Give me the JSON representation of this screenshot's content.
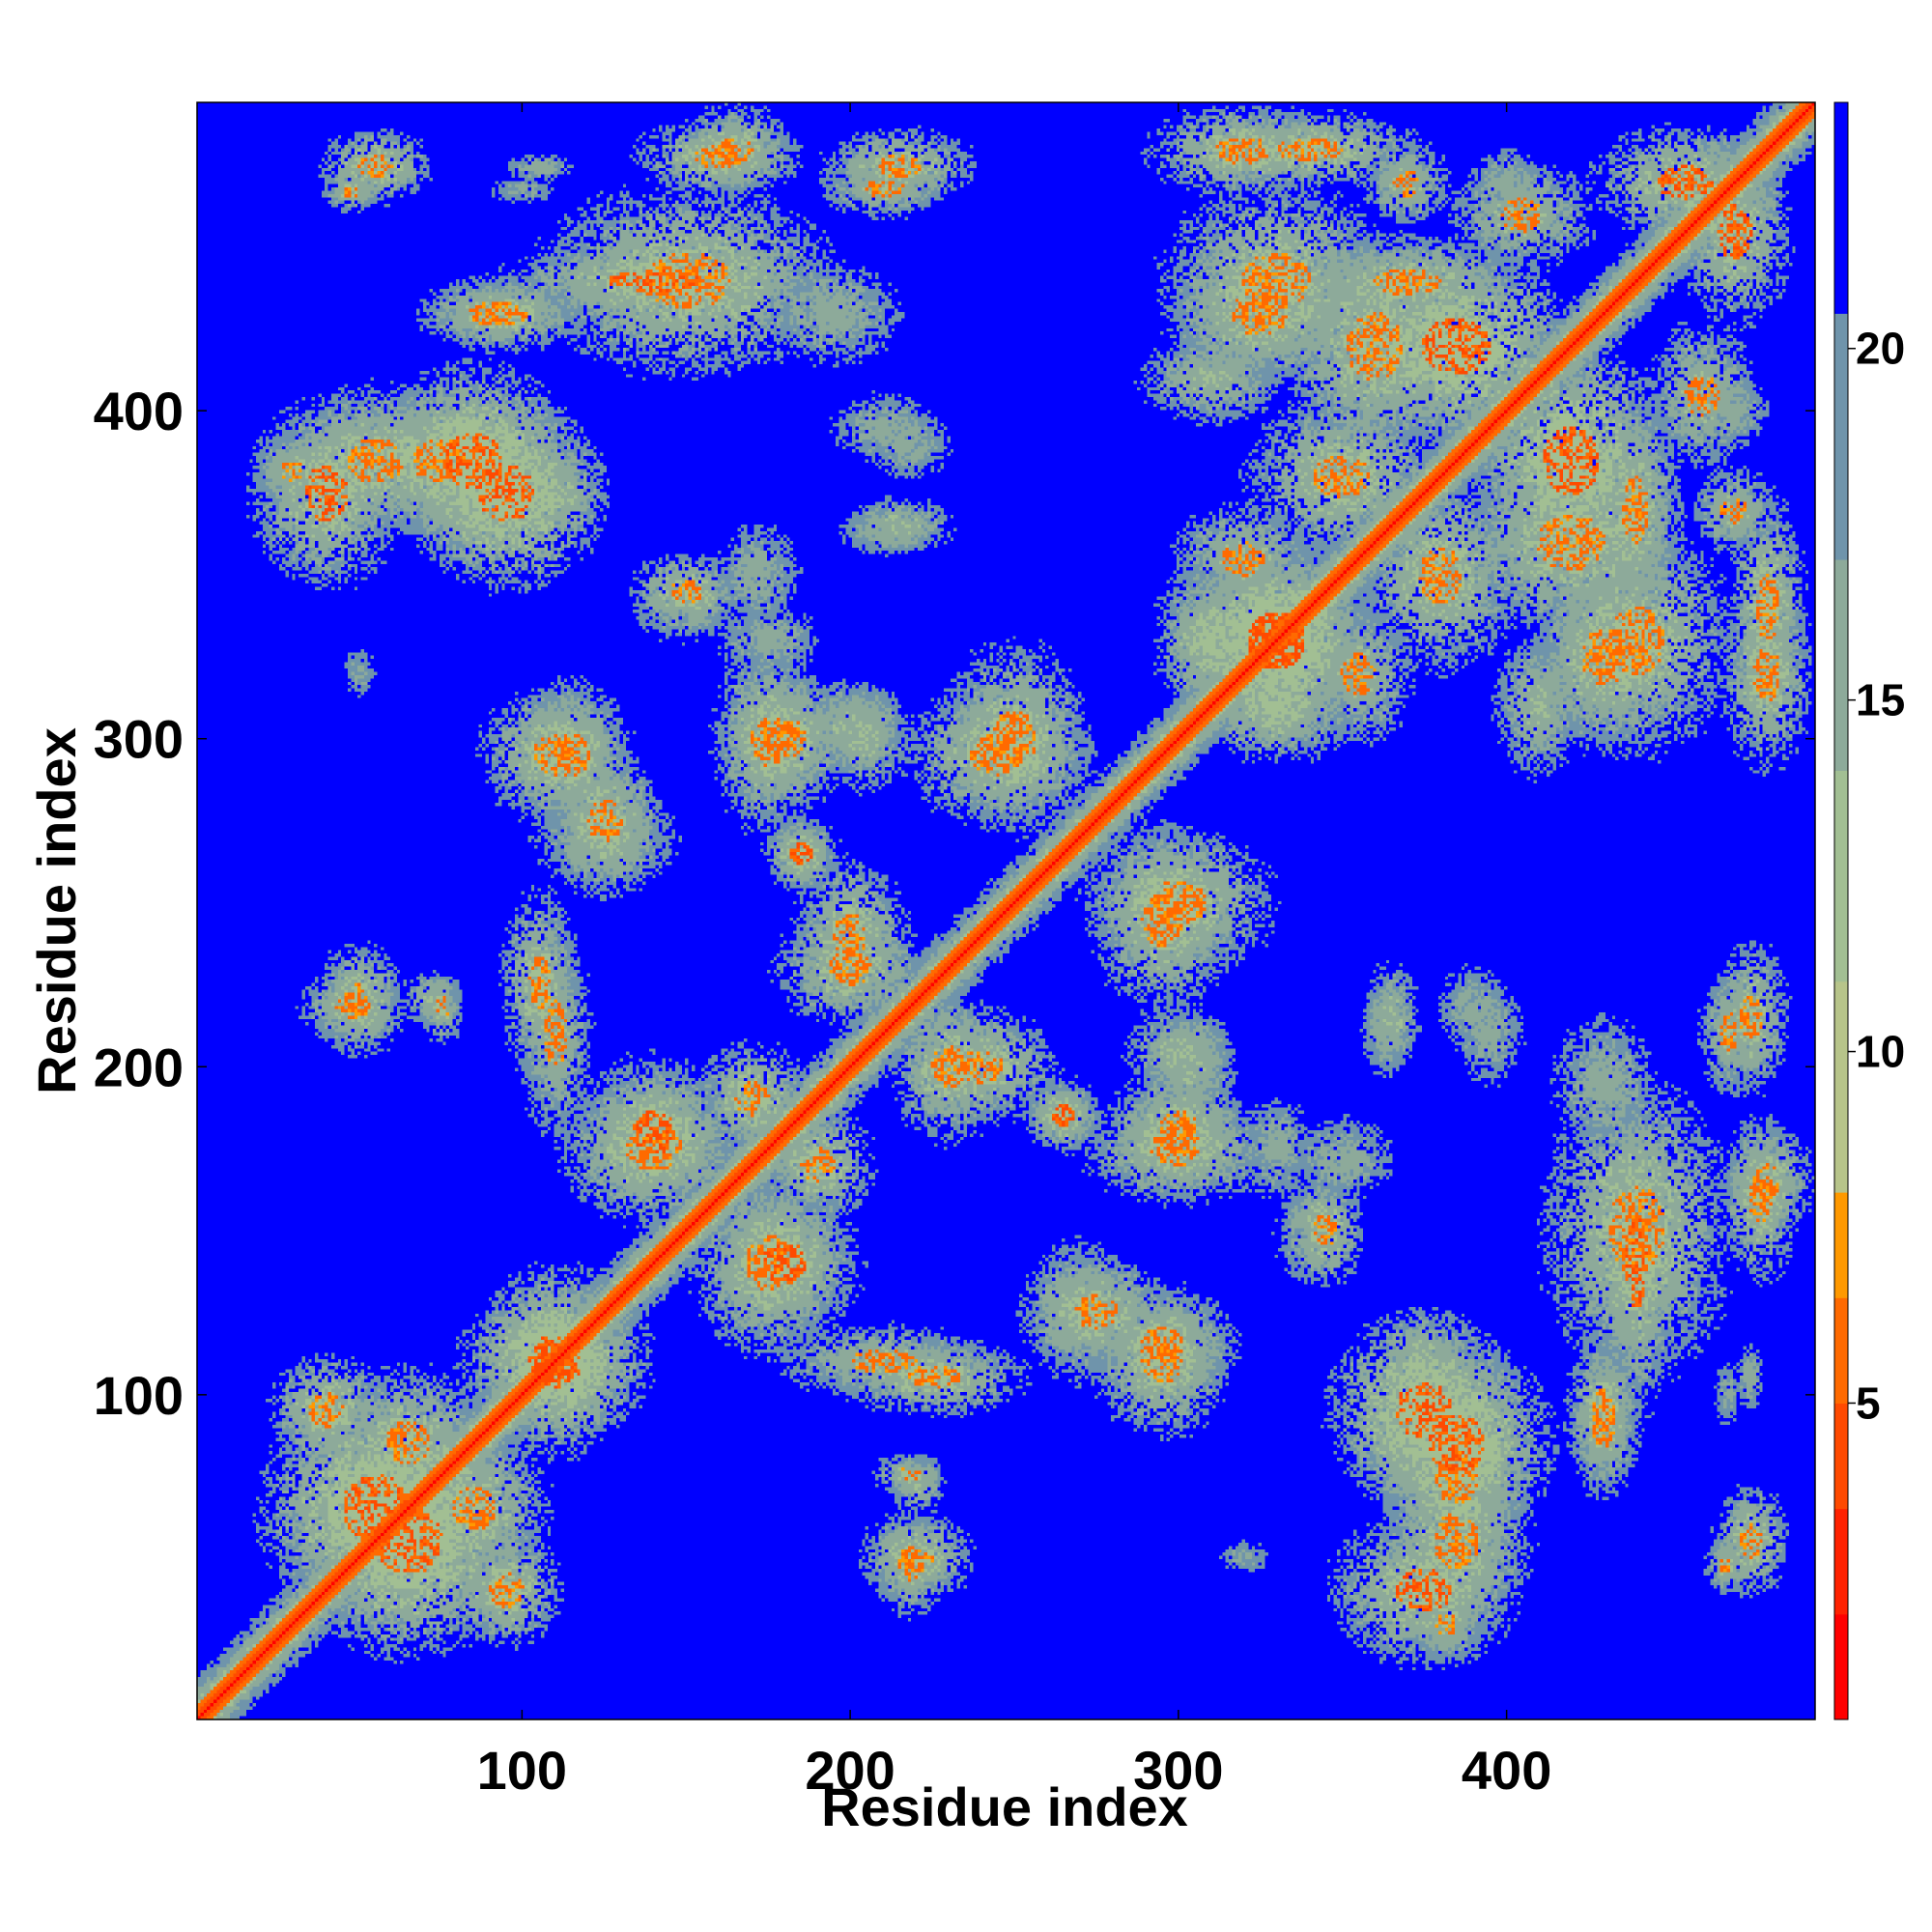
{
  "chart_data": {
    "type": "heatmap",
    "title": "",
    "xlabel": "Residue index",
    "ylabel": "Residue index",
    "xlim": [
      1,
      494
    ],
    "ylim": [
      1,
      494
    ],
    "x_ticks": [
      100,
      200,
      300,
      400
    ],
    "y_ticks": [
      100,
      200,
      300,
      400
    ],
    "x_tick_labels": [
      "100",
      "200",
      "300",
      "400"
    ],
    "y_tick_labels": [
      "100",
      "200",
      "300",
      "400"
    ],
    "grid": false,
    "colorbar": {
      "placement": "right",
      "range": [
        0.5,
        23.5
      ],
      "ticks": [
        5,
        10,
        15,
        20
      ],
      "tick_labels": [
        "5",
        "10",
        "15",
        "20"
      ],
      "levels": [
        {
          "from": 0.5,
          "to": 2.0,
          "color": "#ff0000"
        },
        {
          "from": 2.0,
          "to": 3.5,
          "color": "#ff2200"
        },
        {
          "from": 3.5,
          "to": 5.0,
          "color": "#ff4a00"
        },
        {
          "from": 5.0,
          "to": 6.5,
          "color": "#ff6a00"
        },
        {
          "from": 6.5,
          "to": 8.0,
          "color": "#ff9900"
        },
        {
          "from": 8.0,
          "to": 11.0,
          "color": "#b7c48a"
        },
        {
          "from": 11.0,
          "to": 14.0,
          "color": "#a2bf93"
        },
        {
          "from": 14.0,
          "to": 17.0,
          "color": "#8daa9a"
        },
        {
          "from": 17.0,
          "to": 20.5,
          "color": "#6f94ab"
        },
        {
          "from": 20.5,
          "to": 23.5,
          "color": "#0000ff"
        }
      ]
    },
    "background_value": 23,
    "diagonal_value": 1,
    "contact_regions": [
      {
        "x": 47,
        "y": 467,
        "rx": 8,
        "ry": 6,
        "value": 13,
        "core": 5
      },
      {
        "x": 100,
        "y": 468,
        "rx": 10,
        "ry": 4,
        "value": 15
      },
      {
        "x": 160,
        "y": 478,
        "rx": 22,
        "ry": 10,
        "value": 12,
        "core": 5
      },
      {
        "x": 210,
        "y": 468,
        "rx": 18,
        "ry": 8,
        "value": 13,
        "core": 5
      },
      {
        "x": 140,
        "y": 440,
        "rx": 40,
        "ry": 10,
        "value": 12,
        "core": 4
      },
      {
        "x": 90,
        "y": 430,
        "rx": 20,
        "ry": 10,
        "value": 13,
        "core": 5
      },
      {
        "x": 340,
        "y": 480,
        "rx": 30,
        "ry": 10,
        "value": 12,
        "core": 5
      },
      {
        "x": 325,
        "y": 430,
        "rx": 25,
        "ry": 20,
        "value": 12,
        "core": 5
      },
      {
        "x": 370,
        "y": 440,
        "rx": 30,
        "ry": 12,
        "value": 12,
        "core": 5
      },
      {
        "x": 405,
        "y": 460,
        "rx": 20,
        "ry": 15,
        "value": 13,
        "core": 5
      },
      {
        "x": 455,
        "y": 470,
        "rx": 25,
        "ry": 15,
        "value": 12,
        "core": 4
      },
      {
        "x": 30,
        "y": 382,
        "rx": 12,
        "ry": 10,
        "value": 13,
        "core": 5
      },
      {
        "x": 55,
        "y": 385,
        "rx": 25,
        "ry": 20,
        "value": 12,
        "core": 5
      },
      {
        "x": 85,
        "y": 385,
        "rx": 25,
        "ry": 25,
        "value": 11,
        "core": 4
      },
      {
        "x": 110,
        "y": 375,
        "rx": 15,
        "ry": 12,
        "value": 13
      },
      {
        "x": 218,
        "y": 390,
        "rx": 12,
        "ry": 10,
        "value": 14
      },
      {
        "x": 212,
        "y": 364,
        "rx": 15,
        "ry": 7,
        "value": 14
      },
      {
        "x": 350,
        "y": 380,
        "rx": 25,
        "ry": 20,
        "value": 12,
        "core": 5
      },
      {
        "x": 385,
        "y": 420,
        "rx": 30,
        "ry": 25,
        "value": 11,
        "core": 4
      },
      {
        "x": 420,
        "y": 360,
        "rx": 30,
        "ry": 25,
        "value": 12,
        "core": 5
      },
      {
        "x": 470,
        "y": 370,
        "rx": 12,
        "ry": 12,
        "value": 13,
        "core": 5
      },
      {
        "x": 470,
        "y": 400,
        "rx": 10,
        "ry": 10,
        "value": 14
      },
      {
        "x": 330,
        "y": 330,
        "rx": 25,
        "ry": 25,
        "value": 11,
        "core": 4
      },
      {
        "x": 440,
        "y": 330,
        "rx": 25,
        "ry": 30,
        "value": 12,
        "core": 5
      },
      {
        "x": 480,
        "y": 320,
        "rx": 12,
        "ry": 25,
        "value": 12,
        "core": 5
      },
      {
        "x": 410,
        "y": 310,
        "rx": 12,
        "ry": 20,
        "value": 13
      },
      {
        "x": 150,
        "y": 340,
        "rx": 15,
        "ry": 10,
        "value": 14
      },
      {
        "x": 172,
        "y": 350,
        "rx": 12,
        "ry": 15,
        "value": 14
      },
      {
        "x": 110,
        "y": 295,
        "rx": 20,
        "ry": 18,
        "value": 12,
        "core": 5
      },
      {
        "x": 125,
        "y": 270,
        "rx": 20,
        "ry": 15,
        "value": 13
      },
      {
        "x": 180,
        "y": 300,
        "rx": 18,
        "ry": 18,
        "value": 12,
        "core": 5
      },
      {
        "x": 200,
        "y": 305,
        "rx": 15,
        "ry": 12,
        "value": 13
      },
      {
        "x": 185,
        "y": 265,
        "rx": 10,
        "ry": 10,
        "value": 12,
        "core": 4
      },
      {
        "x": 245,
        "y": 295,
        "rx": 25,
        "ry": 18,
        "value": 12,
        "core": 5
      },
      {
        "x": 300,
        "y": 250,
        "rx": 25,
        "ry": 20,
        "value": 12,
        "core": 5
      },
      {
        "x": 330,
        "y": 310,
        "rx": 20,
        "ry": 15,
        "value": 12
      },
      {
        "x": 355,
        "y": 320,
        "rx": 15,
        "ry": 20,
        "value": 13,
        "core": 5
      },
      {
        "x": 48,
        "y": 218,
        "rx": 15,
        "ry": 10,
        "value": 13,
        "core": 5
      },
      {
        "x": 72,
        "y": 220,
        "rx": 8,
        "ry": 8,
        "value": 13
      },
      {
        "x": 105,
        "y": 225,
        "rx": 10,
        "ry": 25,
        "value": 12,
        "core": 5
      },
      {
        "x": 200,
        "y": 230,
        "rx": 20,
        "ry": 15,
        "value": 12,
        "core": 5
      },
      {
        "x": 240,
        "y": 200,
        "rx": 20,
        "ry": 15,
        "value": 12,
        "core": 5
      },
      {
        "x": 265,
        "y": 185,
        "rx": 10,
        "ry": 8,
        "value": 12,
        "core": 4
      },
      {
        "x": 300,
        "y": 205,
        "rx": 15,
        "ry": 12,
        "value": 13
      },
      {
        "x": 300,
        "y": 175,
        "rx": 25,
        "ry": 15,
        "value": 12,
        "core": 5
      },
      {
        "x": 140,
        "y": 175,
        "rx": 25,
        "ry": 20,
        "value": 12,
        "core": 5
      },
      {
        "x": 180,
        "y": 140,
        "rx": 20,
        "ry": 20,
        "value": 12,
        "core": 4
      },
      {
        "x": 170,
        "y": 190,
        "rx": 15,
        "ry": 15,
        "value": 12,
        "core": 5
      },
      {
        "x": 330,
        "y": 175,
        "rx": 10,
        "ry": 15,
        "value": 14
      },
      {
        "x": 345,
        "y": 150,
        "rx": 10,
        "ry": 15,
        "value": 12,
        "core": 5
      },
      {
        "x": 365,
        "y": 215,
        "rx": 8,
        "ry": 15,
        "value": 13
      },
      {
        "x": 395,
        "y": 210,
        "rx": 10,
        "ry": 15,
        "value": 14
      },
      {
        "x": 475,
        "y": 215,
        "rx": 10,
        "ry": 20,
        "value": 12,
        "core": 5
      },
      {
        "x": 430,
        "y": 195,
        "rx": 15,
        "ry": 20,
        "value": 14
      },
      {
        "x": 440,
        "y": 150,
        "rx": 25,
        "ry": 40,
        "value": 12,
        "core": 5
      },
      {
        "x": 480,
        "y": 165,
        "rx": 12,
        "ry": 15,
        "value": 12,
        "core": 5
      },
      {
        "x": 430,
        "y": 95,
        "rx": 10,
        "ry": 20,
        "value": 12,
        "core": 5
      },
      {
        "x": 210,
        "y": 110,
        "rx": 30,
        "ry": 10,
        "value": 13,
        "core": 5
      },
      {
        "x": 275,
        "y": 125,
        "rx": 20,
        "ry": 15,
        "value": 12,
        "core": 5
      },
      {
        "x": 295,
        "y": 115,
        "rx": 20,
        "ry": 15,
        "value": 12,
        "core": 5
      },
      {
        "x": 375,
        "y": 95,
        "rx": 25,
        "ry": 25,
        "value": 11,
        "core": 4
      },
      {
        "x": 385,
        "y": 75,
        "rx": 20,
        "ry": 25,
        "value": 12,
        "core": 5
      },
      {
        "x": 375,
        "y": 40,
        "rx": 25,
        "ry": 20,
        "value": 12,
        "core": 4
      },
      {
        "x": 220,
        "y": 50,
        "rx": 15,
        "ry": 12,
        "value": 12,
        "core": 5
      },
      {
        "x": 218,
        "y": 75,
        "rx": 10,
        "ry": 6,
        "value": 13,
        "core": 5
      },
      {
        "x": 475,
        "y": 55,
        "rx": 10,
        "ry": 15,
        "value": 12,
        "core": 5
      },
      {
        "x": 475,
        "y": 105,
        "rx": 4,
        "ry": 10,
        "value": 14
      },
      {
        "x": 55,
        "y": 65,
        "rx": 30,
        "ry": 30,
        "value": 11,
        "core": 4
      },
      {
        "x": 85,
        "y": 65,
        "rx": 20,
        "ry": 20,
        "value": 12,
        "core": 5
      },
      {
        "x": 110,
        "y": 110,
        "rx": 20,
        "ry": 25,
        "value": 11,
        "core": 4
      },
      {
        "x": 40,
        "y": 95,
        "rx": 15,
        "ry": 15,
        "value": 12,
        "core": 5
      },
      {
        "x": 320,
        "y": 50,
        "rx": 8,
        "ry": 5,
        "value": 15
      }
    ]
  }
}
